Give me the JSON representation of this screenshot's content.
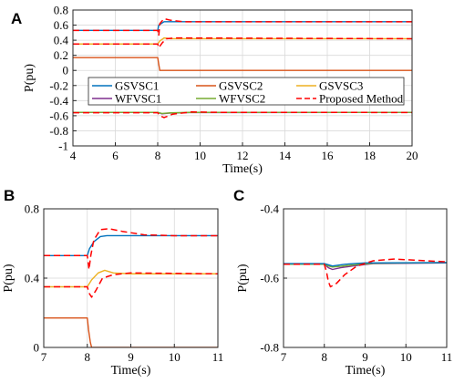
{
  "colors": {
    "GSVSC1": "#0072BD",
    "GSVSC2": "#D95319",
    "GSVSC3": "#EDB120",
    "WFVSC1": "#7E2F8E",
    "WFVSC2": "#77AC30",
    "Proposed Method": "#FF0000"
  },
  "chart_data": [
    {
      "id": "A",
      "panel_label": "A",
      "type": "line",
      "xlabel": "Time(s)",
      "ylabel": "P(pu)",
      "xlim": [
        4,
        20
      ],
      "ylim": [
        -1,
        0.8
      ],
      "xticks": [
        4,
        6,
        8,
        10,
        12,
        14,
        16,
        18,
        20
      ],
      "yticks": [
        -1,
        -0.8,
        -0.6,
        -0.4,
        -0.2,
        0,
        0.2,
        0.4,
        0.6,
        0.8
      ],
      "ytick_labels": [
        "-1",
        "-0.8",
        "-0.6",
        "-0.4",
        "-0.2",
        "0",
        "0.2",
        "0.4",
        "0.6",
        "0.8"
      ],
      "grid": true,
      "legend": {
        "placement": "center",
        "entries": [
          "GSVSC1",
          "GSVSC2",
          "GSVSC3",
          "WFVSC1",
          "WFVSC2",
          "Proposed Method"
        ]
      },
      "series": [
        {
          "name": "GSVSC1",
          "style": "solid",
          "x": [
            4,
            8,
            8.05,
            8.3,
            8.6,
            20
          ],
          "y": [
            0.53,
            0.53,
            0.6,
            0.645,
            0.645,
            0.645
          ]
        },
        {
          "name": "GSVSC2",
          "style": "solid",
          "x": [
            4,
            8,
            8.05,
            8.1,
            20
          ],
          "y": [
            0.17,
            0.17,
            0.08,
            0.0,
            0.0
          ]
        },
        {
          "name": "GSVSC3",
          "style": "solid",
          "x": [
            4,
            8,
            8.1,
            8.3,
            8.6,
            20
          ],
          "y": [
            0.35,
            0.35,
            0.39,
            0.43,
            0.42,
            0.42
          ]
        },
        {
          "name": "WFVSC1",
          "style": "solid",
          "x": [
            4,
            8,
            8.2,
            8.6,
            9.5,
            20
          ],
          "y": [
            -0.555,
            -0.555,
            -0.575,
            -0.565,
            -0.558,
            -0.556
          ]
        },
        {
          "name": "WFVSC2",
          "style": "solid",
          "x": [
            4,
            8,
            8.2,
            8.6,
            9.5,
            20
          ],
          "y": [
            -0.555,
            -0.555,
            -0.57,
            -0.562,
            -0.556,
            -0.555
          ]
        },
        {
          "name": "Proposed Method",
          "style": "dashed",
          "x": [
            4,
            8,
            8.05,
            8.1,
            8.3,
            8.6,
            9.2,
            20
          ],
          "y": [
            0.53,
            0.53,
            0.46,
            0.62,
            0.685,
            0.665,
            0.645,
            0.645
          ]
        },
        {
          "name": "Proposed Method",
          "style": "dashed",
          "x": [
            4,
            8,
            8.05,
            8.2,
            8.4,
            8.8,
            20
          ],
          "y": [
            0.35,
            0.35,
            0.3,
            0.36,
            0.42,
            0.43,
            0.42
          ]
        },
        {
          "name": "Proposed Method",
          "style": "dashed",
          "x": [
            4,
            8,
            8.1,
            8.3,
            8.7,
            9.6,
            11,
            20
          ],
          "y": [
            -0.56,
            -0.56,
            -0.6,
            -0.625,
            -0.58,
            -0.55,
            -0.556,
            -0.557
          ]
        }
      ]
    },
    {
      "id": "B",
      "panel_label": "B",
      "type": "line",
      "xlabel": "Time(s)",
      "ylabel": "P(pu)",
      "xlim": [
        7,
        11
      ],
      "ylim": [
        0,
        0.8
      ],
      "xticks": [
        7,
        8,
        9,
        10,
        11
      ],
      "yticks": [
        0,
        0.4,
        0.8
      ],
      "ytick_labels": [
        "0",
        "0.4",
        "0.8"
      ],
      "grid": true,
      "series": [
        {
          "name": "GSVSC1",
          "style": "solid",
          "x": [
            7,
            8,
            8.05,
            8.15,
            8.3,
            8.45,
            11
          ],
          "y": [
            0.53,
            0.53,
            0.57,
            0.61,
            0.64,
            0.645,
            0.645
          ]
        },
        {
          "name": "GSVSC2",
          "style": "solid",
          "x": [
            7,
            8,
            8.03,
            8.07,
            8.1,
            11
          ],
          "y": [
            0.17,
            0.17,
            0.1,
            0.03,
            0.0,
            0.0
          ]
        },
        {
          "name": "GSVSC3",
          "style": "solid",
          "x": [
            7,
            8,
            8.1,
            8.25,
            8.4,
            8.6,
            9,
            11
          ],
          "y": [
            0.35,
            0.35,
            0.39,
            0.43,
            0.445,
            0.43,
            0.425,
            0.425
          ]
        },
        {
          "name": "Proposed Method",
          "style": "dashed",
          "x": [
            7,
            8,
            8.04,
            8.08,
            8.15,
            8.3,
            8.5,
            8.8,
            9.3,
            10,
            11
          ],
          "y": [
            0.53,
            0.53,
            0.45,
            0.53,
            0.62,
            0.68,
            0.685,
            0.67,
            0.65,
            0.645,
            0.645
          ]
        },
        {
          "name": "Proposed Method",
          "style": "dashed",
          "x": [
            7,
            8,
            8.05,
            8.1,
            8.2,
            8.35,
            8.6,
            9,
            11
          ],
          "y": [
            0.35,
            0.35,
            0.31,
            0.29,
            0.33,
            0.4,
            0.42,
            0.43,
            0.425
          ]
        }
      ]
    },
    {
      "id": "C",
      "panel_label": "C",
      "type": "line",
      "xlabel": "Time(s)",
      "ylabel": "P(pu)",
      "xlim": [
        7,
        11
      ],
      "ylim": [
        -0.8,
        -0.4
      ],
      "xticks": [
        7,
        8,
        9,
        10,
        11
      ],
      "yticks": [
        -0.8,
        -0.6,
        -0.4
      ],
      "ytick_labels": [
        "-0.8",
        "-0.6",
        "-0.4"
      ],
      "grid": true,
      "series": [
        {
          "name": "WFVSC1",
          "style": "solid",
          "x": [
            7,
            8,
            8.1,
            8.2,
            8.4,
            8.7,
            9.2,
            11
          ],
          "y": [
            -0.56,
            -0.56,
            -0.57,
            -0.575,
            -0.57,
            -0.565,
            -0.558,
            -0.556
          ]
        },
        {
          "name": "WFVSC2",
          "style": "solid",
          "x": [
            7,
            8,
            8.1,
            8.2,
            8.4,
            8.7,
            9.2,
            11
          ],
          "y": [
            -0.56,
            -0.56,
            -0.565,
            -0.568,
            -0.566,
            -0.562,
            -0.557,
            -0.555
          ]
        },
        {
          "name": "GSVSC1",
          "style": "solid",
          "x": [
            7,
            8,
            8.2,
            8.5,
            9,
            11
          ],
          "y": [
            -0.558,
            -0.558,
            -0.565,
            -0.56,
            -0.556,
            -0.555
          ]
        },
        {
          "name": "Proposed Method",
          "style": "dashed",
          "x": [
            7,
            8,
            8.05,
            8.1,
            8.15,
            8.3,
            8.5,
            8.8,
            9.2,
            9.7,
            10.2,
            11
          ],
          "y": [
            -0.56,
            -0.56,
            -0.58,
            -0.61,
            -0.625,
            -0.615,
            -0.59,
            -0.565,
            -0.55,
            -0.545,
            -0.548,
            -0.553
          ]
        }
      ]
    }
  ]
}
